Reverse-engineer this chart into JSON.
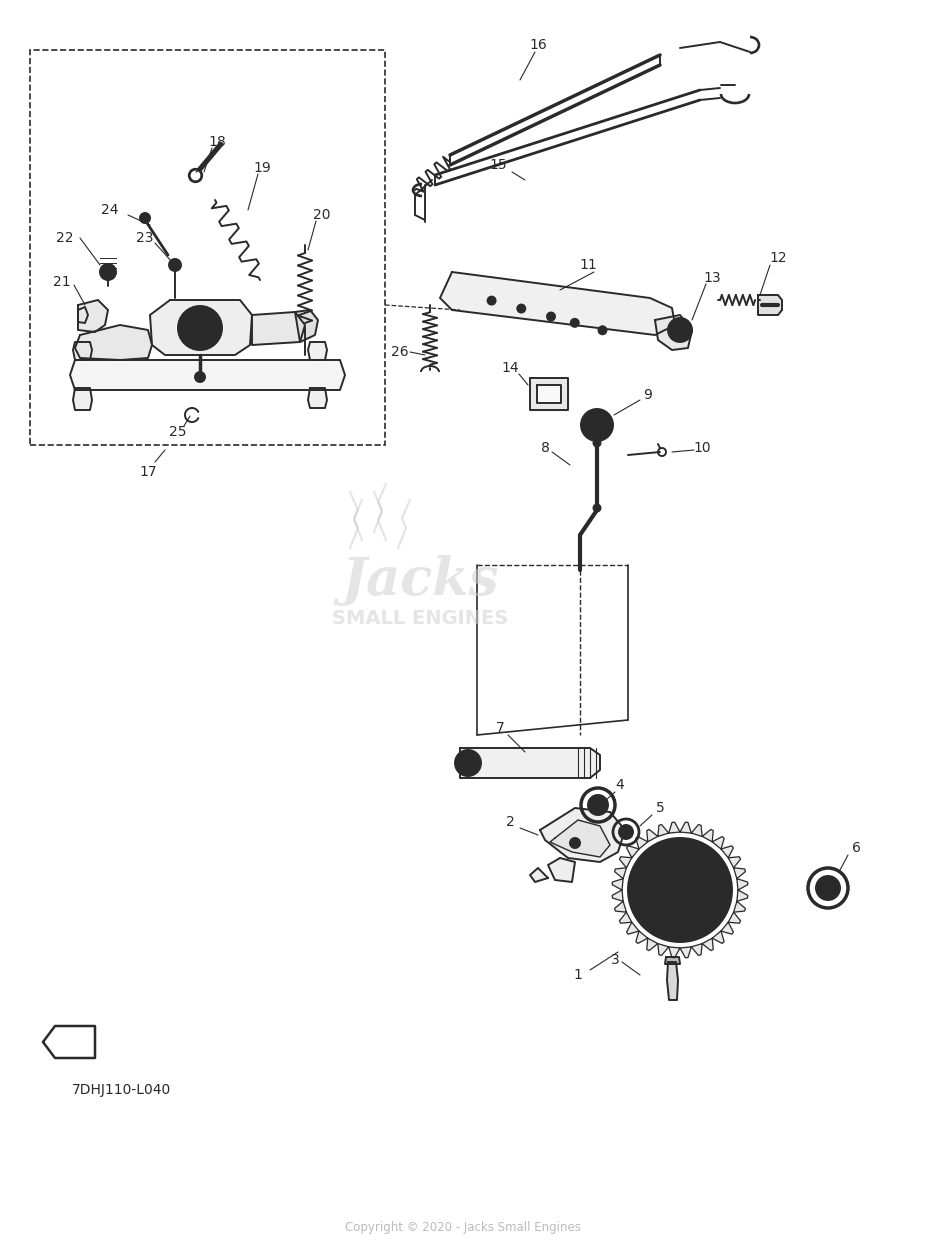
{
  "bg_color": "#ffffff",
  "line_color": "#2a2a2a",
  "watermark_color": "#d0d0d0",
  "copyright_text": "Copyright © 2020 - Jacks Small Engines",
  "diagram_code": "7DHJ110-L040",
  "watermark_text": "Jacks",
  "watermark_sub": "SMALL ENGINES",
  "lw": 1.4
}
